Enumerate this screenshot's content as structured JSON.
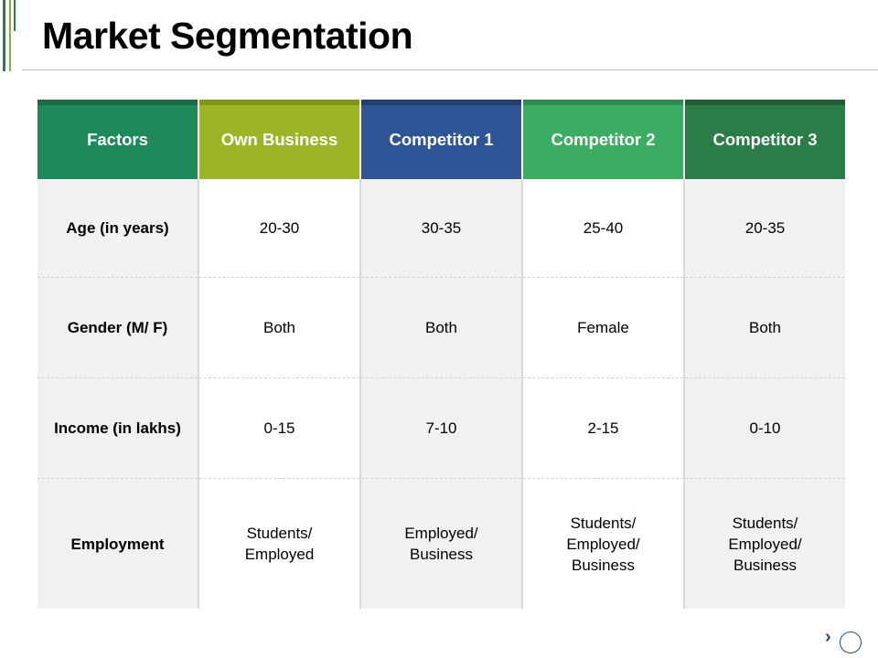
{
  "title": "Market Segmentation",
  "table": {
    "headers": [
      "Factors",
      "Own Business",
      "Competitor 1",
      "Competitor 2",
      "Competitor 3"
    ],
    "header_colors": [
      "#1e8a5c",
      "#9bb526",
      "#2f5597",
      "#3cad62",
      "#2a7d47"
    ],
    "header_top_colors": [
      "#1b6b48",
      "#7f9619",
      "#243f73",
      "#2f8a4f",
      "#1f5e36"
    ],
    "rows": [
      {
        "factor": "Age (in years)",
        "values": [
          "20-30",
          "30-35",
          "25-40",
          "20-35"
        ]
      },
      {
        "factor": "Gender (M/ F)",
        "values": [
          "Both",
          "Both",
          "Female",
          "Both"
        ]
      },
      {
        "factor": "Income  (in lakhs)",
        "values": [
          "0-15",
          "7-10",
          "2-15",
          "0-10"
        ]
      },
      {
        "factor": "Employment",
        "values": [
          "Students/\nEmployed",
          "Employed/\nBusiness",
          "Students/\nEmployed/\nBusiness",
          "Students/\nEmployed/\nBusiness"
        ]
      }
    ]
  },
  "nav": {
    "next_glyph": "›",
    "icon": "chevron-right-icon"
  }
}
